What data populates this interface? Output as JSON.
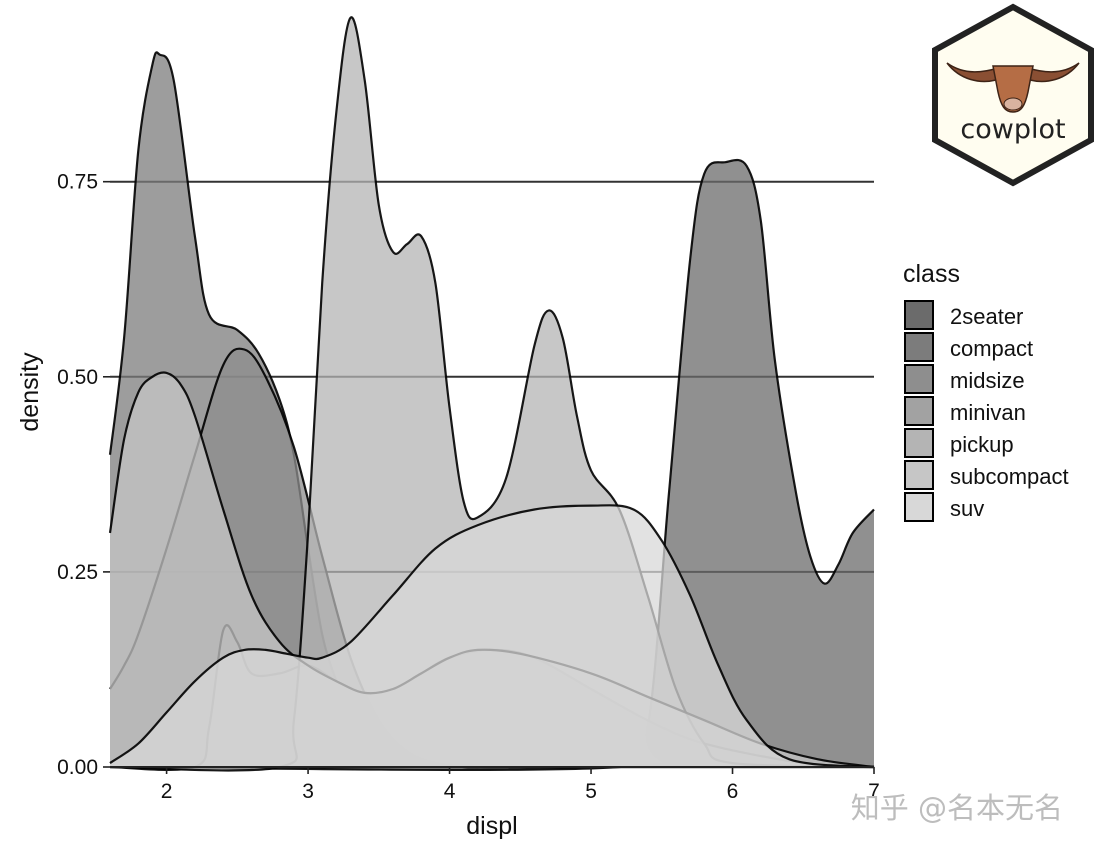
{
  "chart_data": {
    "type": "area",
    "title": "",
    "xlabel": "displ",
    "ylabel": "density",
    "xlim": [
      1.6,
      7
    ],
    "ylim": [
      0,
      0.97
    ],
    "x_ticks": [
      "2",
      "3",
      "4",
      "5",
      "6",
      "7"
    ],
    "y_ticks": [
      "0.00",
      "0.25",
      "0.50",
      "0.75"
    ],
    "grid": "horizontal major lines",
    "legend": {
      "title": "class",
      "position": "right"
    },
    "series": [
      {
        "name": "2seater",
        "color": "#6b6b6b",
        "x": [
          1.6,
          5.2,
          5.4,
          5.55,
          5.7,
          5.8,
          5.95,
          6.1,
          6.2,
          6.3,
          6.45,
          6.55,
          6.65,
          6.75,
          6.85,
          7.0
        ],
        "y": [
          0,
          0,
          0.05,
          0.35,
          0.65,
          0.76,
          0.775,
          0.77,
          0.7,
          0.52,
          0.35,
          0.27,
          0.235,
          0.26,
          0.3,
          0.33
        ]
      },
      {
        "name": "compact",
        "color": "#7c7c7c",
        "x": [
          1.6,
          1.7,
          1.8,
          1.9,
          1.95,
          2.05,
          2.2,
          2.3,
          2.5,
          2.65,
          2.8,
          2.9,
          3.0,
          3.1,
          3.2,
          3.3,
          3.5,
          3.8,
          4.2,
          5.0,
          6.0,
          7.0
        ],
        "y": [
          0.4,
          0.55,
          0.79,
          0.9,
          0.913,
          0.88,
          0.68,
          0.58,
          0.56,
          0.53,
          0.47,
          0.4,
          0.28,
          0.17,
          0.11,
          0.07,
          0.03,
          0.005,
          0,
          0,
          0,
          0
        ]
      },
      {
        "name": "midsize",
        "color": "#8e8e8e",
        "x": [
          1.6,
          1.7,
          1.8,
          2.0,
          2.2,
          2.4,
          2.55,
          2.7,
          2.9,
          3.1,
          3.3,
          3.5,
          3.7,
          3.9,
          4.1,
          4.3,
          4.6,
          5.0,
          5.5,
          6.0,
          7.0
        ],
        "y": [
          0.1,
          0.13,
          0.17,
          0.28,
          0.4,
          0.515,
          0.535,
          0.5,
          0.41,
          0.27,
          0.14,
          0.06,
          0.02,
          0.005,
          0,
          0,
          0,
          0,
          0,
          0,
          0
        ]
      },
      {
        "name": "minivan",
        "color": "#a2a2a2",
        "x": [
          1.6,
          2.2,
          2.3,
          2.4,
          2.5,
          2.6,
          2.8,
          3.0,
          3.2,
          3.4,
          3.6,
          3.8,
          4.0,
          4.3,
          4.6,
          5.0,
          5.4,
          5.8,
          6.5,
          7.0
        ],
        "y": [
          0,
          0,
          0.05,
          0.175,
          0.16,
          0.12,
          0.12,
          0.13,
          0.11,
          0.095,
          0.1,
          0.12,
          0.14,
          0.15,
          0.14,
          0.1,
          0.06,
          0.03,
          0.005,
          0
        ]
      },
      {
        "name": "pickup",
        "color": "#b4b4b4",
        "x": [
          1.6,
          2.8,
          2.9,
          3.0,
          3.1,
          3.2,
          3.3,
          3.4,
          3.5,
          3.6,
          3.7,
          3.8,
          3.9,
          4.0,
          4.1,
          4.2,
          4.4,
          4.6,
          4.7,
          4.8,
          4.9,
          5.0,
          5.2,
          5.4,
          5.6,
          5.8,
          6.0,
          7.0
        ],
        "y": [
          0,
          0,
          0.06,
          0.3,
          0.62,
          0.84,
          0.96,
          0.88,
          0.72,
          0.66,
          0.67,
          0.68,
          0.62,
          0.46,
          0.34,
          0.32,
          0.37,
          0.54,
          0.585,
          0.55,
          0.45,
          0.38,
          0.33,
          0.22,
          0.1,
          0.03,
          0.005,
          0
        ]
      },
      {
        "name": "subcompact",
        "color": "#c6c6c6",
        "x": [
          1.6,
          1.7,
          1.8,
          1.9,
          2.0,
          2.1,
          2.2,
          2.4,
          2.6,
          2.8,
          3.0,
          3.2,
          3.4,
          3.6,
          3.8,
          4.0,
          4.2,
          4.5,
          5.0,
          5.4,
          5.8,
          6.2,
          6.6,
          7.0
        ],
        "y": [
          0.3,
          0.42,
          0.48,
          0.5,
          0.505,
          0.49,
          0.45,
          0.33,
          0.22,
          0.16,
          0.13,
          0.11,
          0.095,
          0.1,
          0.12,
          0.14,
          0.15,
          0.145,
          0.12,
          0.09,
          0.06,
          0.03,
          0.01,
          0
        ]
      },
      {
        "name": "suv",
        "color": "#d8d8d8",
        "x": [
          1.6,
          1.8,
          2.0,
          2.2,
          2.4,
          2.55,
          2.7,
          2.85,
          3.0,
          3.1,
          3.3,
          3.6,
          3.9,
          4.2,
          4.6,
          5.0,
          5.3,
          5.5,
          5.7,
          5.9,
          6.1,
          6.4,
          7.0
        ],
        "y": [
          0.005,
          0.03,
          0.07,
          0.11,
          0.14,
          0.15,
          0.15,
          0.145,
          0.14,
          0.14,
          0.16,
          0.22,
          0.28,
          0.31,
          0.33,
          0.335,
          0.33,
          0.29,
          0.22,
          0.13,
          0.06,
          0.01,
          0
        ]
      }
    ]
  },
  "logo": {
    "text": "cowplot"
  },
  "watermark": {
    "text": "知乎 @名本无名"
  }
}
